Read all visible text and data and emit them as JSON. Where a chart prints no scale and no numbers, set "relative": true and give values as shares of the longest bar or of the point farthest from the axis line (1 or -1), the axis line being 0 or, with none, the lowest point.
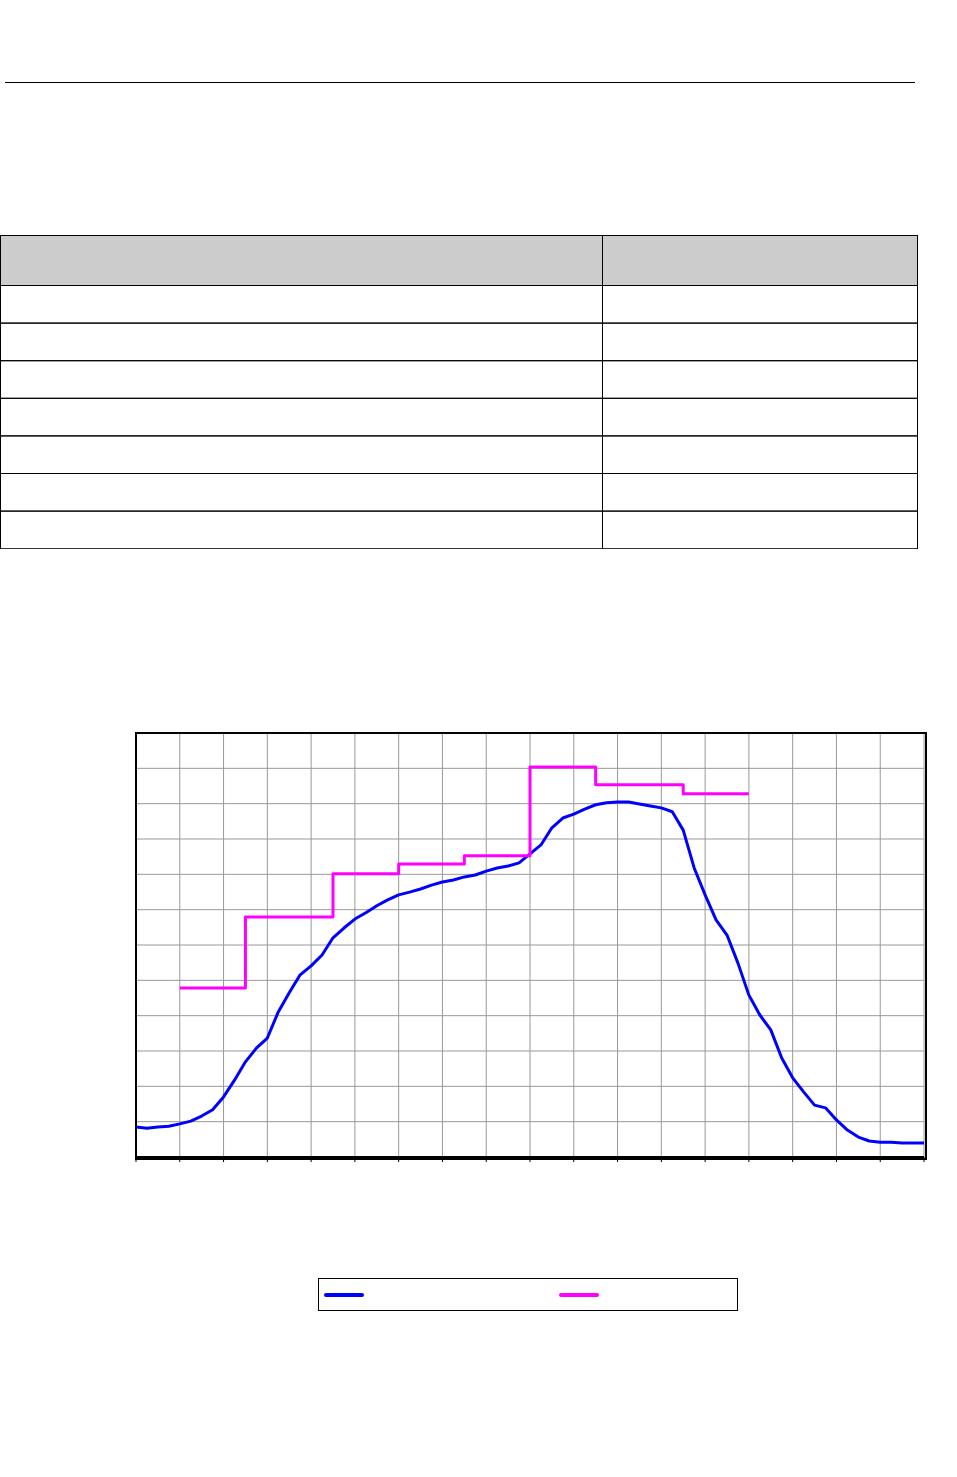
{
  "chart_data": {
    "type": "line",
    "relative": true,
    "grid": true,
    "categories": [
      null,
      null,
      null,
      null,
      null,
      null,
      null,
      null,
      null,
      null,
      null,
      null,
      null,
      null,
      null,
      null,
      null,
      null,
      null,
      null,
      null,
      null,
      null,
      null,
      null,
      null,
      null,
      null,
      null,
      null,
      null,
      null,
      null,
      null,
      null,
      null,
      null,
      null,
      null,
      null,
      null,
      null,
      null,
      null,
      null,
      null,
      null,
      null,
      null,
      null,
      null,
      null,
      null,
      null,
      null,
      null,
      null,
      null,
      null,
      null,
      null,
      null,
      null,
      null,
      null,
      null,
      null,
      null,
      null,
      null,
      null,
      null,
      null
    ],
    "series": [
      {
        "type": "line",
        "color": "#0000ff",
        "values": [
          0.077,
          0.074,
          0.077,
          0.079,
          0.085,
          0.092,
          0.105,
          0.121,
          0.154,
          0.197,
          0.244,
          0.279,
          0.305,
          0.372,
          0.421,
          0.467,
          0.49,
          0.518,
          0.562,
          0.587,
          0.61,
          0.626,
          0.644,
          0.659,
          0.672,
          0.679,
          0.687,
          0.697,
          0.705,
          0.71,
          0.718,
          0.723,
          0.733,
          0.741,
          0.746,
          0.754,
          0.777,
          0.8,
          0.844,
          0.869,
          0.879,
          0.892,
          0.903,
          0.908,
          0.91,
          0.91,
          0.905,
          0.9,
          0.895,
          0.885,
          0.838,
          0.741,
          0.672,
          0.608,
          0.569,
          0.497,
          0.415,
          0.364,
          0.326,
          0.254,
          0.203,
          0.167,
          0.133,
          0.126,
          0.095,
          0.069,
          0.051,
          0.041,
          0.038,
          0.038,
          0.036,
          0.036,
          0.036
        ]
      },
      {
        "type": "step",
        "color": "#ff00ff",
        "values": [
          null,
          null,
          null,
          null,
          0.433,
          0.433,
          0.433,
          0.433,
          0.433,
          0.433,
          0.615,
          0.615,
          0.615,
          0.615,
          0.615,
          0.615,
          0.615,
          0.615,
          0.726,
          0.726,
          0.726,
          0.726,
          0.726,
          0.726,
          0.751,
          0.751,
          0.751,
          0.751,
          0.751,
          0.751,
          0.772,
          0.772,
          0.772,
          0.772,
          0.772,
          0.772,
          1.0,
          1.0,
          1.0,
          1.0,
          1.0,
          1.0,
          0.954,
          0.954,
          0.954,
          0.954,
          0.954,
          0.954,
          0.954,
          0.954,
          0.931,
          0.931,
          0.931,
          0.931,
          0.931,
          0.931,
          0.931,
          null,
          null,
          null,
          null,
          null,
          null,
          null,
          null,
          null,
          null,
          null,
          null,
          null,
          null,
          null,
          null
        ]
      }
    ]
  }
}
